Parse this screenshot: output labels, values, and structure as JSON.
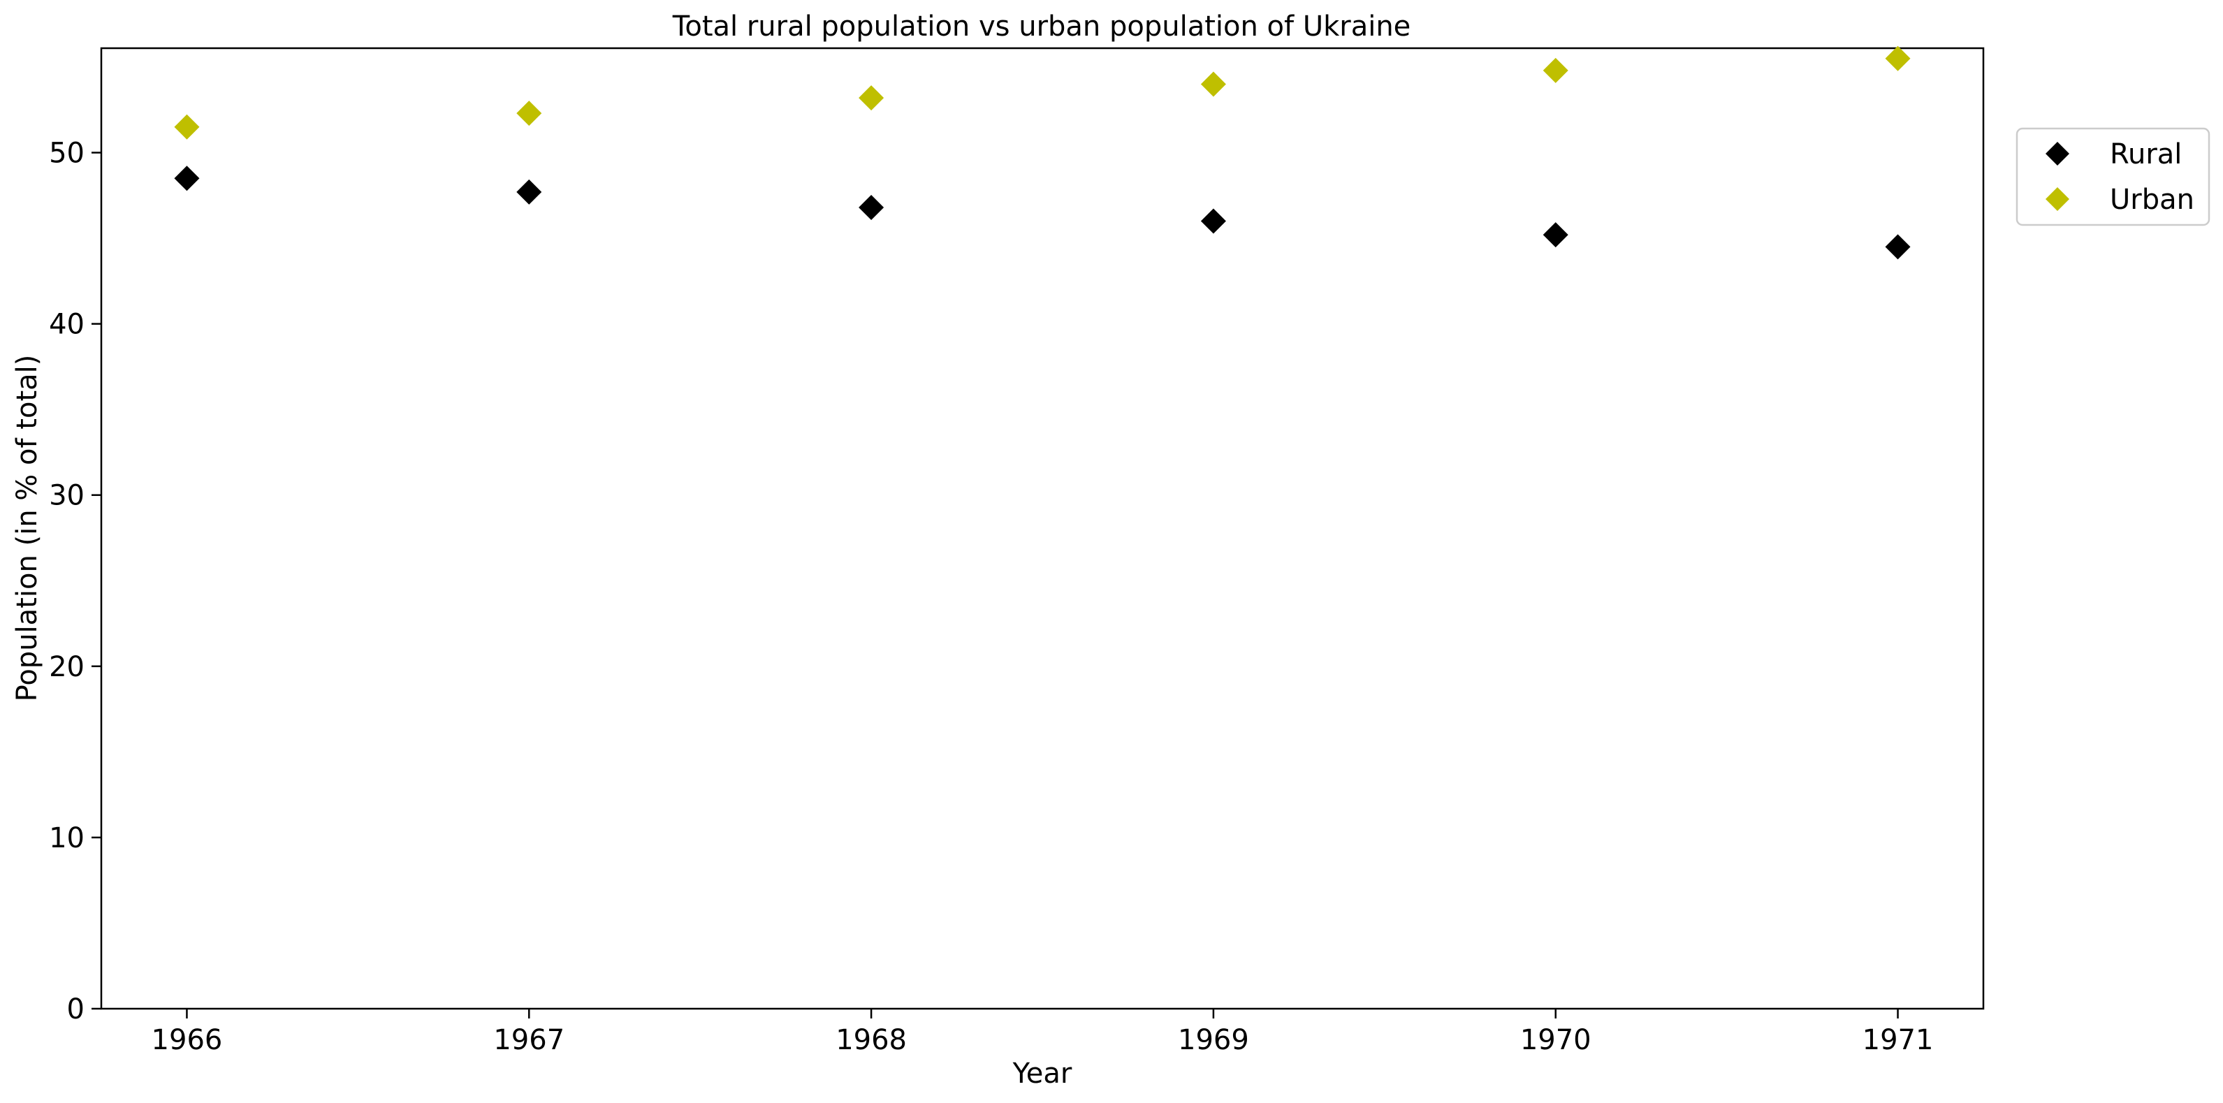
{
  "chart_data": {
    "type": "scatter",
    "title": "Total rural population vs urban population of Ukraine",
    "xlabel": "Year",
    "ylabel": "Population (in % of total)",
    "x": [
      1966,
      1967,
      1968,
      1969,
      1970,
      1971
    ],
    "x_tick_labels": [
      "1966",
      "1967",
      "1968",
      "1969",
      "1970",
      "1971"
    ],
    "xlim": [
      1965.75,
      1971.25
    ],
    "ylim": [
      0,
      56.1
    ],
    "y_ticks": [
      0,
      10,
      20,
      30,
      40,
      50
    ],
    "y_tick_labels": [
      "0",
      "10",
      "20",
      "30",
      "40",
      "50"
    ],
    "grid": false,
    "legend_position": "outside-right-top",
    "marker": "diamond",
    "series": [
      {
        "name": "Rural",
        "color": "#000000",
        "values": [
          48.5,
          47.7,
          46.8,
          46.0,
          45.2,
          44.5
        ]
      },
      {
        "name": "Urban",
        "color": "#bfbf00",
        "values": [
          51.5,
          52.3,
          53.2,
          54.0,
          54.8,
          55.5
        ]
      }
    ]
  }
}
